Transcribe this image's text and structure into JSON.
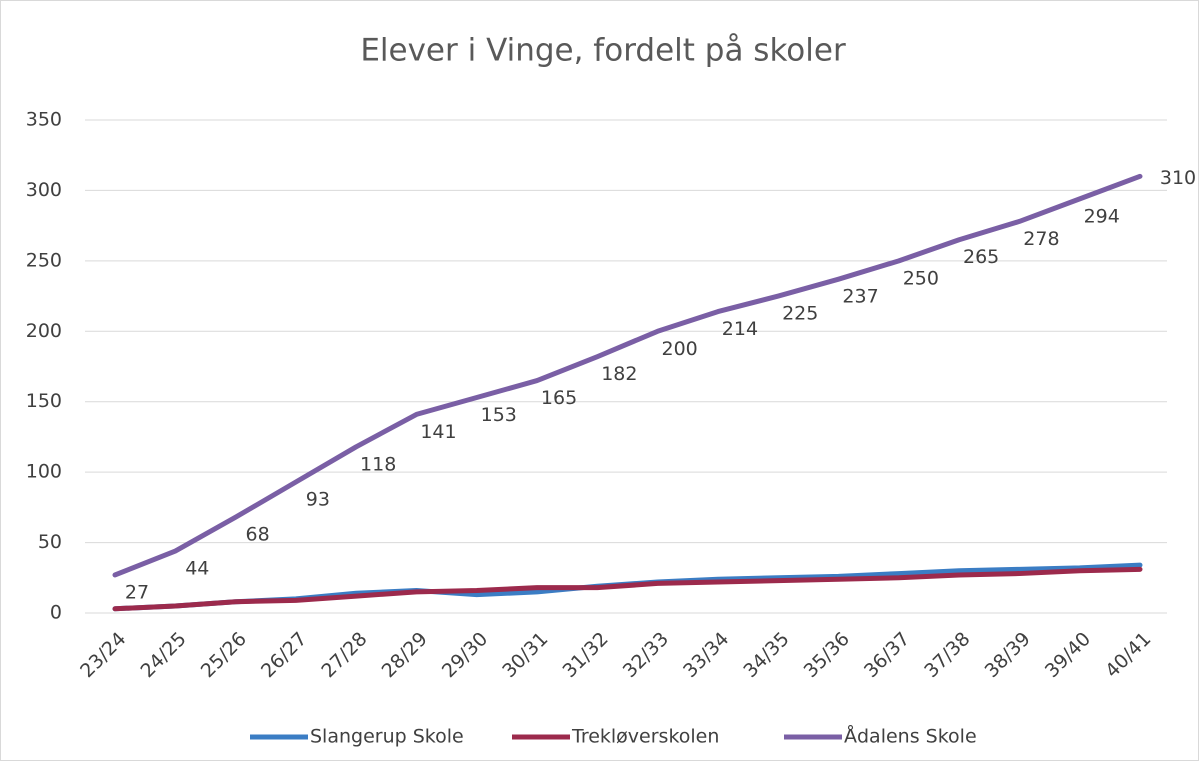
{
  "chart_data": {
    "type": "line",
    "title": "Elever i Vinge, fordelt på skoler",
    "categories": [
      "23/24",
      "24/25",
      "25/26",
      "26/27",
      "27/28",
      "28/29",
      "29/30",
      "30/31",
      "31/32",
      "32/33",
      "33/34",
      "34/35",
      "35/36",
      "36/37",
      "37/38",
      "38/39",
      "39/40",
      "40/41"
    ],
    "series": [
      {
        "name": "Slangerup Skole",
        "color": "#3b7dc4",
        "values": [
          3,
          5,
          8,
          10,
          14,
          16,
          13,
          15,
          19,
          22,
          24,
          25,
          26,
          28,
          30,
          31,
          32,
          34
        ]
      },
      {
        "name": "Trekløverskolen",
        "color": "#9c2a4c",
        "values": [
          3,
          5,
          8,
          9,
          12,
          15,
          16,
          18,
          18,
          21,
          22,
          23,
          24,
          25,
          27,
          28,
          30,
          31
        ]
      },
      {
        "name": "Ådalens Skole",
        "color": "#7a5fa5",
        "values": [
          27,
          44,
          68,
          93,
          118,
          141,
          153,
          165,
          182,
          200,
          214,
          225,
          237,
          250,
          265,
          278,
          294,
          310
        ],
        "show_labels": true
      }
    ],
    "ylim": [
      0,
      350
    ],
    "yticks": [
      0,
      50,
      100,
      150,
      200,
      250,
      300,
      350
    ],
    "grid": true,
    "legend": "bottom"
  }
}
